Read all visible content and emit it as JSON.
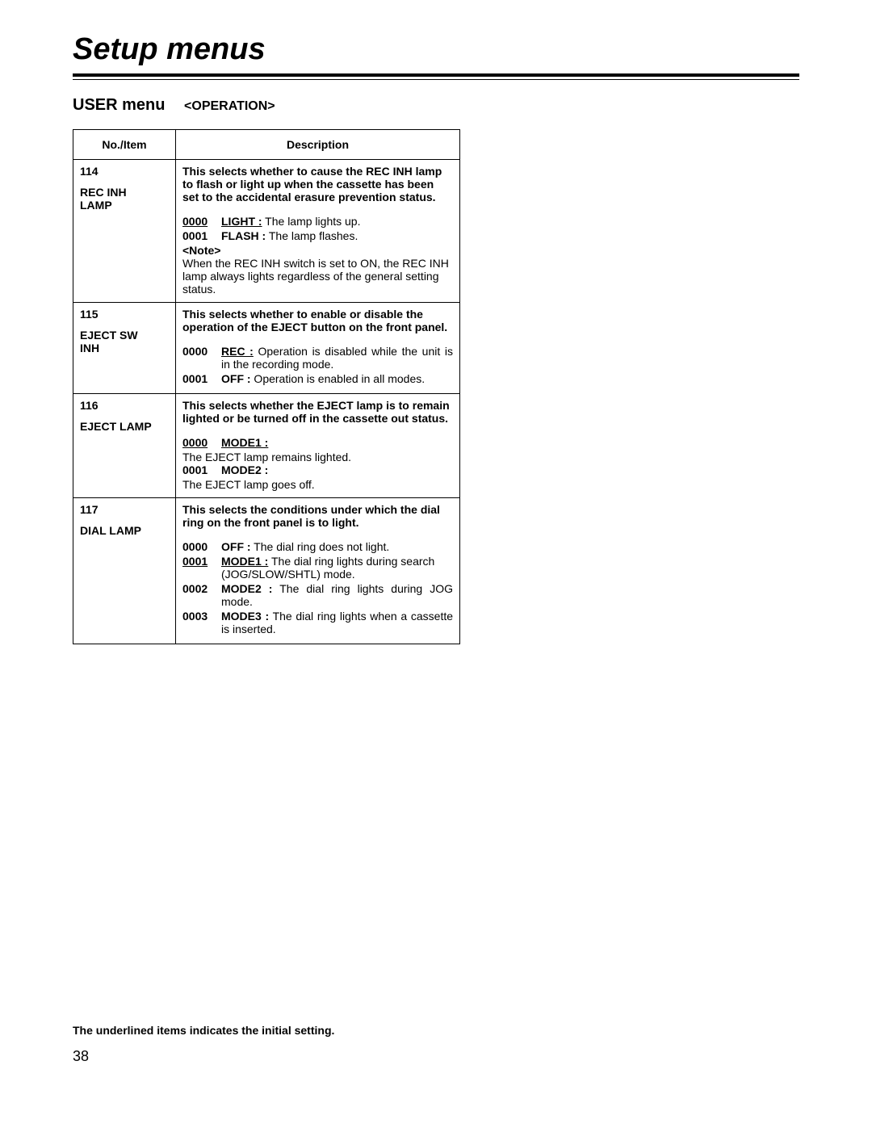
{
  "page_title": "Setup menus",
  "subtitle_main": "USER menu",
  "subtitle_tag": "<OPERATION>",
  "table": {
    "header_no": "No./Item",
    "header_desc": "Description"
  },
  "rows": [
    {
      "no": "114",
      "name_line1": "REC INH",
      "name_line2": "LAMP",
      "head": "This selects whether to cause the REC INH lamp to flash or light up when the cassette has been set to the accidental erasure prevention status.",
      "opts": [
        {
          "code": "0000",
          "code_underline": true,
          "label": "LIGHT :",
          "label_underline": true,
          "text": " The lamp lights up.",
          "justify": false
        },
        {
          "code": "0001",
          "code_underline": false,
          "label": "FLASH :",
          "label_underline": false,
          "text": " The lamp flashes.",
          "justify": false
        }
      ],
      "note_label": "<Note>",
      "note_body": "When the REC INH switch is set to ON, the REC INH lamp always lights regardless of the general setting status."
    },
    {
      "no": "115",
      "name_line1": "EJECT SW",
      "name_line2": "INH",
      "head": "This selects whether to enable or disable the operation of the EJECT button on the front panel.",
      "opts": [
        {
          "code": "0000",
          "code_underline": true,
          "label": "REC :",
          "label_underline": true,
          "text": " Operation is disabled while the unit is in the recording mode.",
          "justify": true
        },
        {
          "code": "0001",
          "code_underline": false,
          "label": "OFF :",
          "label_underline": false,
          "text": " Operation is enabled in all modes.",
          "justify": true
        }
      ]
    },
    {
      "no": "116",
      "name_line1": "EJECT LAMP",
      "name_line2": "",
      "head": "This selects whether the EJECT lamp is to remain lighted or be turned off in the cassette out status.",
      "opts": [
        {
          "code": "0000",
          "code_underline": true,
          "label": "MODE1 :",
          "label_underline": true,
          "text": "",
          "below": "The EJECT lamp remains lighted.",
          "justify": false
        },
        {
          "code": "0001",
          "code_underline": false,
          "label": "MODE2 :",
          "label_underline": false,
          "text": "",
          "below": "The EJECT lamp goes off.",
          "justify": false
        }
      ]
    },
    {
      "no": "117",
      "name_line1": "DIAL LAMP",
      "name_line2": "",
      "head": "This selects the conditions under which the dial ring on the front panel is to light.",
      "opts": [
        {
          "code": "0000",
          "code_underline": false,
          "label": "OFF :",
          "label_underline": false,
          "text": " The dial ring does not light.",
          "justify": false
        },
        {
          "code": "0001",
          "code_underline": true,
          "label": "MODE1 :",
          "label_underline": true,
          "text": " The dial ring lights during search (JOG/SLOW/SHTL) mode.",
          "justify": false
        },
        {
          "code": "0002",
          "code_underline": false,
          "label": "MODE2 :",
          "label_underline": false,
          "text": " The dial ring lights during JOG mode.",
          "justify": true
        },
        {
          "code": "0003",
          "code_underline": false,
          "label": "MODE3 :",
          "label_underline": false,
          "text": " The dial ring lights when a cassette is inserted.",
          "justify": true
        }
      ]
    }
  ],
  "footnote": "The underlined items indicates the initial setting.",
  "page_number": "38"
}
